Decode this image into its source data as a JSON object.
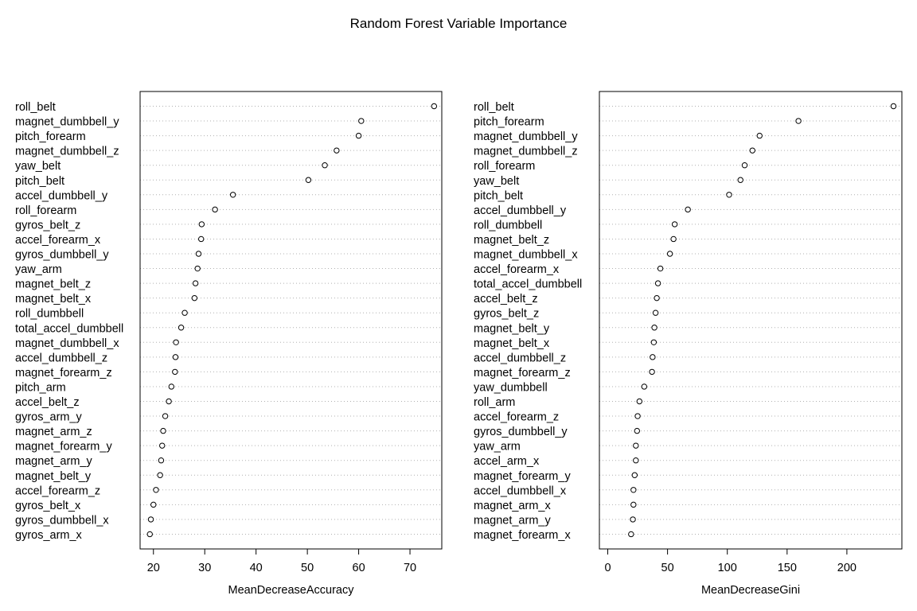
{
  "title": "Random Forest Variable Importance",
  "chart_data": [
    {
      "type": "dotchart",
      "xlabel": "MeanDecreaseAccuracy",
      "xlim": [
        17.4,
        76.2
      ],
      "xticks": [
        20,
        30,
        40,
        50,
        60,
        70
      ],
      "grid": "dotted horizontal lines",
      "labels": [
        "roll_belt",
        "magnet_dumbbell_y",
        "pitch_forearm",
        "magnet_dumbbell_z",
        "yaw_belt",
        "pitch_belt",
        "accel_dumbbell_y",
        "roll_forearm",
        "gyros_belt_z",
        "accel_forearm_x",
        "gyros_dumbbell_y",
        "yaw_arm",
        "magnet_belt_z",
        "magnet_belt_x",
        "roll_dumbbell",
        "total_accel_dumbbell",
        "magnet_dumbbell_x",
        "accel_dumbbell_z",
        "magnet_forearm_z",
        "pitch_arm",
        "accel_belt_z",
        "gyros_arm_y",
        "magnet_arm_z",
        "magnet_forearm_y",
        "magnet_arm_y",
        "magnet_belt_y",
        "accel_forearm_z",
        "gyros_belt_x",
        "gyros_dumbbell_x",
        "gyros_arm_x"
      ],
      "values": [
        74.7,
        60.5,
        60.0,
        55.7,
        53.4,
        50.2,
        35.5,
        32.0,
        29.4,
        29.3,
        28.8,
        28.6,
        28.2,
        28.0,
        26.1,
        25.4,
        24.4,
        24.3,
        24.2,
        23.5,
        23.0,
        22.3,
        21.9,
        21.7,
        21.5,
        21.3,
        20.5,
        20.0,
        19.5,
        19.3
      ]
    },
    {
      "type": "dotchart",
      "xlabel": "MeanDecreaseGini",
      "xlim": [
        -7,
        246
      ],
      "xticks": [
        0,
        50,
        100,
        150,
        200
      ],
      "grid": "dotted horizontal lines",
      "labels": [
        "roll_belt",
        "pitch_forearm",
        "magnet_dumbbell_y",
        "magnet_dumbbell_z",
        "roll_forearm",
        "yaw_belt",
        "pitch_belt",
        "accel_dumbbell_y",
        "roll_dumbbell",
        "magnet_belt_z",
        "magnet_dumbbell_x",
        "accel_forearm_x",
        "total_accel_dumbbell",
        "accel_belt_z",
        "gyros_belt_z",
        "magnet_belt_y",
        "magnet_belt_x",
        "accel_dumbbell_z",
        "magnet_forearm_z",
        "yaw_dumbbell",
        "roll_arm",
        "accel_forearm_z",
        "gyros_dumbbell_y",
        "yaw_arm",
        "accel_arm_x",
        "magnet_forearm_y",
        "accel_dumbbell_x",
        "magnet_arm_x",
        "magnet_arm_y",
        "magnet_forearm_x"
      ],
      "values": [
        239.0,
        159.5,
        127.0,
        121.0,
        114.5,
        111.0,
        101.5,
        67.0,
        56.0,
        55.0,
        52.0,
        44.0,
        42.0,
        41.0,
        40.0,
        39.0,
        38.5,
        37.5,
        37.0,
        30.5,
        26.5,
        25.0,
        24.5,
        23.5,
        23.5,
        22.5,
        21.5,
        21.5,
        21.0,
        19.5
      ]
    }
  ]
}
